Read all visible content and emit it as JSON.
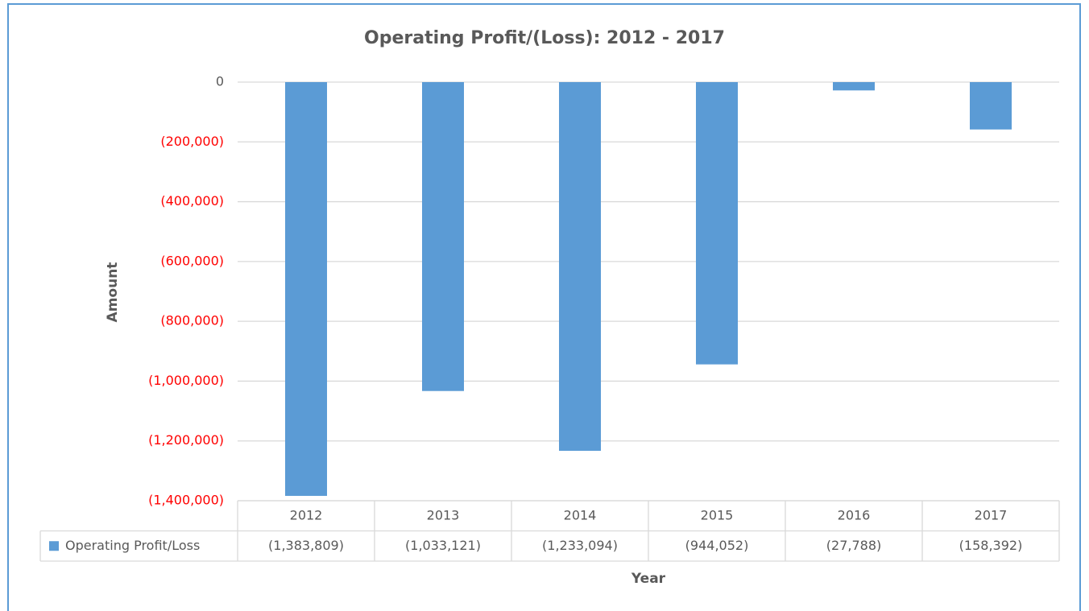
{
  "chart_data": {
    "type": "bar",
    "title": "Operating Profit/(Loss): 2012 - 2017",
    "x_label": "Year",
    "y_label": "Amount",
    "categories": [
      "2012",
      "2013",
      "2014",
      "2015",
      "2016",
      "2017"
    ],
    "series": [
      {
        "name": "Operating Profit/Loss",
        "color": "#5b9bd5",
        "values": [
          -1383809,
          -1033121,
          -1233094,
          -944052,
          -27788,
          -158392
        ],
        "value_labels": [
          "(1,383,809)",
          "(1,033,121)",
          "(1,233,094)",
          "(944,052)",
          "(27,788)",
          "(158,392)"
        ]
      }
    ],
    "ylim": [
      -1400000,
      0
    ],
    "yticks": [
      0,
      {
        "value": -200000,
        "label": "(200,000)"
      },
      {
        "value": -400000,
        "label": "(400,000)"
      },
      {
        "value": -600000,
        "label": "(600,000)"
      },
      {
        "value": -800000,
        "label": "(800,000)"
      },
      {
        "value": -1000000,
        "label": "(1,000,000)"
      },
      {
        "value": -1200000,
        "label": "(1,200,000)"
      },
      {
        "value": -1400000,
        "label": "(1,400,000)"
      }
    ],
    "negative_tick_color": "#ff0000",
    "grid": true,
    "data_table": true
  }
}
